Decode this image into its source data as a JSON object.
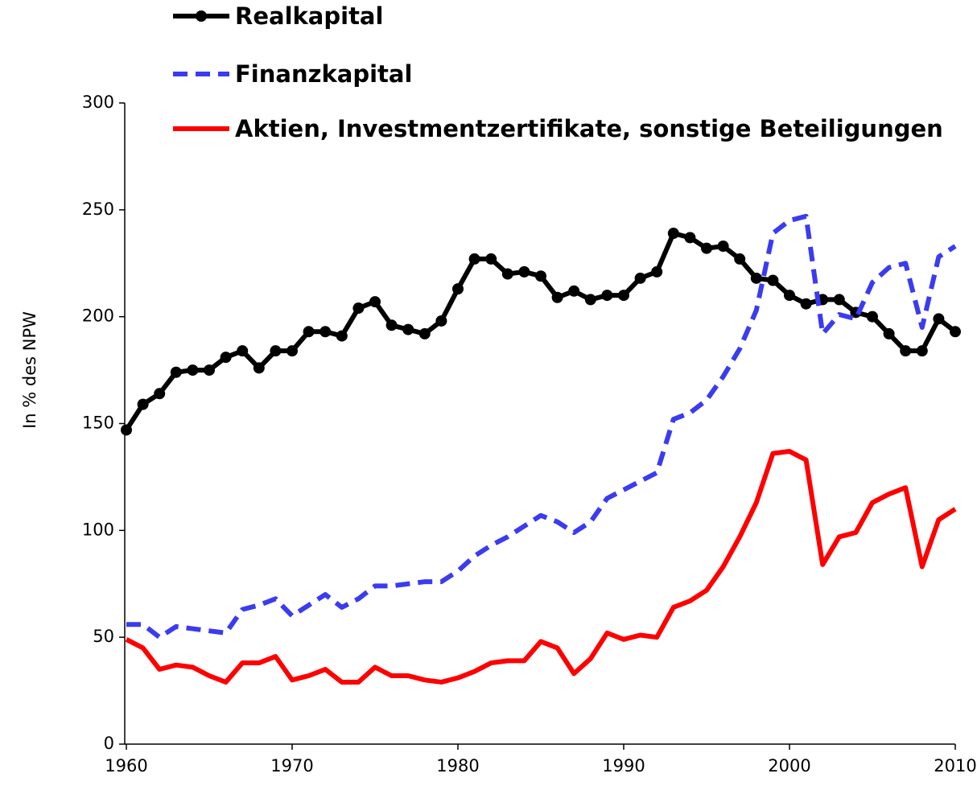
{
  "chart_data": {
    "type": "line",
    "y_label": "In % des NPW",
    "x": [
      1960,
      1961,
      1962,
      1963,
      1964,
      1965,
      1966,
      1967,
      1968,
      1969,
      1970,
      1971,
      1972,
      1973,
      1974,
      1975,
      1976,
      1977,
      1978,
      1979,
      1980,
      1981,
      1982,
      1983,
      1984,
      1985,
      1986,
      1987,
      1988,
      1989,
      1990,
      1991,
      1992,
      1993,
      1994,
      1995,
      1996,
      1997,
      1998,
      1999,
      2000,
      2001,
      2002,
      2003,
      2004,
      2005,
      2006,
      2007,
      2008,
      2009,
      2010
    ],
    "series": [
      {
        "name": "Realkapital",
        "color": "#000000",
        "dash": "solid",
        "marker": "circle",
        "values": [
          147,
          159,
          164,
          174,
          175,
          175,
          181,
          184,
          176,
          184,
          184,
          193,
          193,
          191,
          204,
          207,
          196,
          194,
          192,
          198,
          213,
          227,
          227,
          220,
          221,
          219,
          209,
          212,
          208,
          210,
          210,
          218,
          221,
          239,
          237,
          232,
          233,
          227,
          218,
          217,
          210,
          206,
          208,
          208,
          202,
          200,
          192,
          184,
          184,
          199,
          193
        ]
      },
      {
        "name": "Finanzkapital",
        "color": "#3b3bf0",
        "dash": "dashed",
        "marker": "none",
        "values": [
          56,
          56,
          50,
          55,
          54,
          53,
          52,
          63,
          65,
          68,
          60,
          65,
          70,
          64,
          68,
          74,
          74,
          75,
          76,
          76,
          81,
          88,
          93,
          97,
          102,
          107,
          104,
          99,
          104,
          115,
          119,
          123,
          127,
          152,
          155,
          161,
          172,
          185,
          203,
          239,
          245,
          247,
          192,
          201,
          199,
          216,
          223,
          225,
          195,
          228,
          233
        ]
      },
      {
        "name": "Aktien, Investmentzertifikate, sonstige Beteiligungen",
        "color": "#ff0000",
        "dash": "solid",
        "marker": "none",
        "values": [
          49,
          45,
          35,
          37,
          36,
          32,
          29,
          38,
          38,
          41,
          30,
          32,
          35,
          29,
          29,
          36,
          32,
          32,
          30,
          29,
          31,
          34,
          38,
          39,
          39,
          48,
          45,
          33,
          40,
          52,
          49,
          51,
          50,
          64,
          67,
          72,
          83,
          97,
          113,
          136,
          137,
          133,
          84,
          97,
          99,
          113,
          117,
          120,
          83,
          105,
          110
        ]
      }
    ],
    "xlim": [
      1960,
      2010
    ],
    "xticks": [
      1960,
      1970,
      1980,
      1990,
      2000,
      2010
    ],
    "ylim": [
      0,
      300
    ],
    "yticks": [
      0,
      50,
      100,
      150,
      200,
      250,
      300
    ],
    "grid": false
  }
}
